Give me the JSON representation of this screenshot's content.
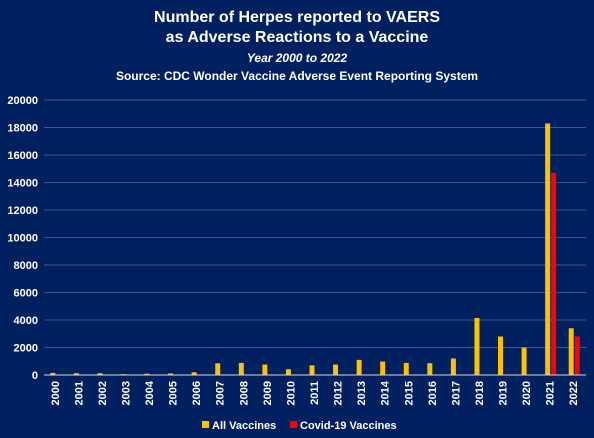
{
  "chart_data": {
    "type": "bar",
    "title_lines": [
      "Number of Herpes reported to VAERS",
      "as Adverse Reactions to a Vaccine"
    ],
    "subtitle": "Year 2000 to 2022",
    "source": "Source: CDC Wonder Vaccine Adverse Event Reporting System",
    "xlabel": "",
    "ylabel": "",
    "categories": [
      "2000",
      "2001",
      "2002",
      "2003",
      "2004",
      "2005",
      "2006",
      "2007",
      "2008",
      "2009",
      "2010",
      "2011",
      "2012",
      "2013",
      "2014",
      "2015",
      "2016",
      "2017",
      "2018",
      "2019",
      "2020",
      "2021",
      "2022"
    ],
    "series": [
      {
        "name": "All Vaccines",
        "color": "#FFC000",
        "values": [
          150,
          130,
          130,
          60,
          90,
          110,
          200,
          850,
          880,
          760,
          420,
          700,
          760,
          1100,
          980,
          880,
          860,
          1200,
          4150,
          2800,
          2000,
          18300,
          3400
        ]
      },
      {
        "name": "Covid-19 Vaccines",
        "color": "#FF0000",
        "values": [
          0,
          0,
          0,
          0,
          0,
          0,
          0,
          0,
          0,
          0,
          0,
          0,
          0,
          0,
          0,
          0,
          0,
          0,
          0,
          0,
          30,
          14700,
          2800
        ]
      }
    ],
    "yticks": [
      "0",
      "2000",
      "4000",
      "6000",
      "8000",
      "10000",
      "12000",
      "14000",
      "16000",
      "18000",
      "20000"
    ],
    "ylim": [
      0,
      20000
    ],
    "grid": "horizontal",
    "legend_position": "bottom"
  }
}
